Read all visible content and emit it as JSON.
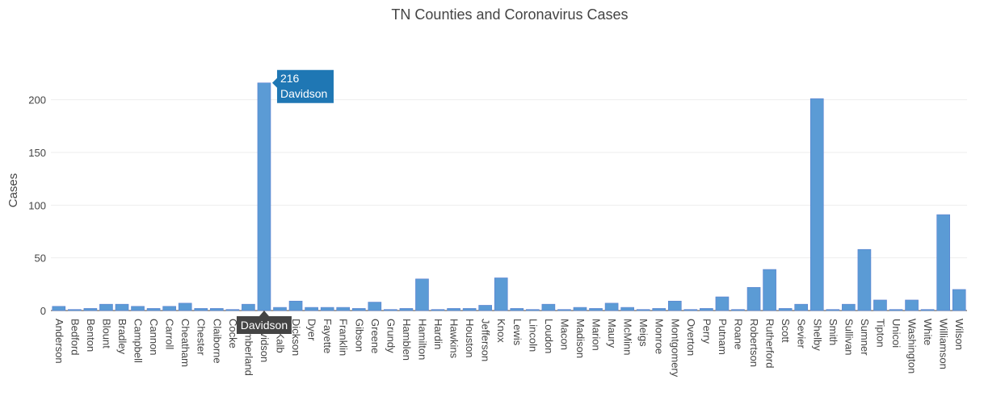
{
  "chart_data": {
    "type": "bar",
    "title": "TN Counties and Coronavirus Cases",
    "xlabel": "",
    "ylabel": "Cases",
    "ylim": [
      0,
      225
    ],
    "yticks": [
      0,
      50,
      100,
      150,
      200
    ],
    "grid": true,
    "categories": [
      "Anderson",
      "Bedford",
      "Benton",
      "Blount",
      "Bradley",
      "Campbell",
      "Cannon",
      "Carroll",
      "Cheatham",
      "Chester",
      "Claiborne",
      "Cocke",
      "Cumberland",
      "Davidson",
      "DeKalb",
      "Dickson",
      "Dyer",
      "Fayette",
      "Franklin",
      "Gibson",
      "Greene",
      "Grundy",
      "Hamblen",
      "Hamilton",
      "Hardin",
      "Hawkins",
      "Houston",
      "Jefferson",
      "Knox",
      "Lewis",
      "Lincoln",
      "Loudon",
      "Macon",
      "Madison",
      "Marion",
      "Maury",
      "McMinn",
      "Meigs",
      "Monroe",
      "Montgomery",
      "Overton",
      "Perry",
      "Putnam",
      "Roane",
      "Robertson",
      "Rutherford",
      "Scott",
      "Sevier",
      "Shelby",
      "Smith",
      "Sullivan",
      "Sumner",
      "Tipton",
      "Unicoi",
      "Washington",
      "White",
      "Williamson",
      "Wilson"
    ],
    "values": [
      4,
      1,
      2,
      6,
      6,
      4,
      2,
      4,
      7,
      2,
      2,
      1,
      6,
      216,
      3,
      9,
      3,
      3,
      3,
      2,
      8,
      1,
      2,
      30,
      1,
      2,
      2,
      5,
      31,
      2,
      1,
      6,
      1,
      3,
      2,
      7,
      3,
      1,
      2,
      9,
      1,
      2,
      13,
      1,
      22,
      39,
      2,
      6,
      201,
      1,
      6,
      58,
      10,
      1,
      10,
      1,
      91,
      20
    ],
    "bar_color": "#5b9bd5",
    "hover": {
      "category": "Davidson",
      "value_label": "216",
      "name_label": "Davidson",
      "tooltip_color": "#1f77b4",
      "spike_label_color": "#444444"
    }
  }
}
